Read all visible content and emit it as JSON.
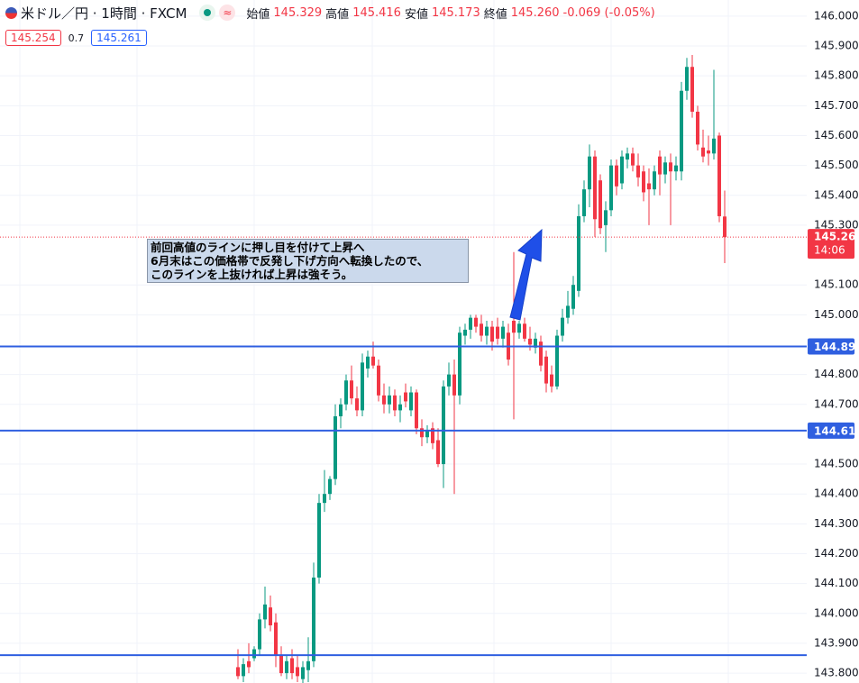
{
  "header": {
    "symbol": "米ドル／円 · 1時間 · FXCM",
    "open_label": "始値",
    "open": "145.329",
    "high_label": "高値",
    "high": "145.416",
    "low_label": "安値",
    "low": "145.173",
    "close_label": "終値",
    "close": "145.260",
    "change": "-0.069 (-0.05%)",
    "sell": "145.254",
    "spread": "0.7",
    "buy": "145.261"
  },
  "chart_data": {
    "type": "candlestick",
    "open": [
      143.82,
      143.79,
      143.84,
      143.85,
      143.88,
      143.98,
      144.02,
      143.97,
      143.86,
      143.8,
      143.85,
      143.82,
      143.78,
      143.81,
      143.84,
      144.12,
      144.37,
      144.4,
      144.45,
      144.66,
      144.7,
      144.78,
      144.72,
      144.68,
      144.82,
      144.86,
      144.83,
      144.73,
      144.7,
      144.73,
      144.68,
      144.74,
      144.68,
      144.74,
      144.62,
      144.59,
      144.62,
      144.58,
      144.5,
      144.76,
      144.8,
      144.73,
      144.93,
      144.95,
      144.99,
      144.97,
      144.93,
      144.96,
      144.96,
      144.92,
      144.94,
      144.98,
      144.94,
      144.97,
      144.92,
      144.89,
      144.91,
      144.86,
      144.8,
      144.76,
      144.93,
      144.99,
      145.02,
      145.08,
      145.33,
      145.42,
      145.53,
      145.45,
      145.3,
      145.35,
      145.5,
      145.44,
      145.52,
      145.54,
      145.5,
      145.48,
      145.44,
      145.42,
      145.53,
      145.47,
      145.51,
      145.48,
      145.48,
      145.75,
      145.83,
      145.68,
      145.56,
      145.55,
      145.54,
      145.6,
      145.329
    ],
    "high": [
      143.88,
      143.85,
      143.9,
      143.89,
      144.0,
      144.09,
      144.06,
      144.0,
      143.89,
      143.86,
      143.88,
      143.86,
      143.84,
      143.92,
      144.17,
      144.4,
      144.48,
      144.46,
      144.7,
      144.72,
      144.8,
      144.83,
      144.76,
      144.87,
      144.88,
      144.91,
      144.85,
      144.77,
      144.76,
      144.75,
      144.73,
      144.77,
      144.76,
      144.75,
      144.65,
      144.63,
      144.64,
      144.62,
      144.78,
      144.84,
      144.85,
      144.96,
      144.97,
      145.0,
      145.0,
      145.0,
      144.98,
      144.98,
      144.99,
      144.98,
      144.97,
      145.21,
      144.98,
      144.99,
      144.96,
      144.94,
      144.93,
      144.88,
      144.83,
      144.95,
      145.02,
      145.08,
      145.13,
      145.37,
      145.45,
      145.57,
      145.55,
      145.47,
      145.38,
      145.52,
      145.52,
      145.55,
      145.56,
      145.56,
      145.54,
      145.5,
      145.49,
      145.5,
      145.55,
      145.53,
      145.54,
      145.53,
      145.78,
      145.86,
      145.87,
      145.7,
      145.62,
      145.6,
      145.82,
      145.61,
      145.416
    ],
    "low": [
      143.78,
      143.77,
      143.8,
      143.84,
      143.86,
      143.95,
      143.94,
      143.82,
      143.79,
      143.78,
      143.78,
      143.77,
      143.76,
      143.77,
      143.82,
      144.1,
      144.34,
      144.38,
      144.43,
      144.62,
      144.68,
      144.7,
      144.66,
      144.66,
      144.79,
      144.82,
      144.71,
      144.67,
      144.67,
      144.66,
      144.64,
      144.69,
      144.66,
      144.6,
      144.56,
      144.57,
      144.55,
      144.49,
      144.42,
      144.73,
      144.4,
      144.7,
      144.9,
      144.92,
      144.94,
      144.91,
      144.9,
      144.88,
      144.9,
      144.89,
      144.83,
      144.65,
      144.92,
      144.91,
      144.88,
      144.87,
      144.81,
      144.74,
      144.74,
      144.75,
      144.91,
      144.97,
      145.0,
      145.06,
      145.31,
      145.36,
      145.26,
      145.27,
      145.21,
      145.33,
      145.4,
      145.42,
      145.49,
      145.48,
      145.43,
      145.38,
      145.3,
      145.4,
      145.4,
      145.44,
      145.3,
      145.45,
      145.45,
      145.72,
      145.66,
      145.55,
      145.51,
      145.5,
      145.52,
      145.31,
      145.173
    ],
    "close": [
      143.79,
      143.83,
      143.82,
      143.88,
      143.98,
      144.03,
      143.96,
      143.86,
      143.8,
      143.84,
      143.8,
      143.79,
      143.82,
      143.84,
      144.12,
      144.37,
      144.4,
      144.45,
      144.66,
      144.7,
      144.78,
      144.72,
      144.68,
      144.84,
      144.86,
      144.83,
      144.73,
      144.7,
      144.73,
      144.68,
      144.7,
      144.71,
      144.74,
      144.62,
      144.59,
      144.61,
      144.57,
      144.5,
      144.76,
      144.8,
      144.73,
      144.94,
      144.95,
      144.99,
      144.96,
      144.93,
      144.96,
      144.91,
      144.92,
      144.96,
      144.85,
      144.94,
      144.97,
      144.92,
      144.9,
      144.92,
      144.83,
      144.77,
      144.76,
      144.93,
      144.99,
      145.03,
      145.1,
      145.33,
      145.42,
      145.53,
      145.32,
      145.29,
      145.35,
      145.5,
      145.43,
      145.53,
      145.54,
      145.5,
      145.46,
      145.41,
      145.42,
      145.48,
      145.47,
      145.51,
      145.48,
      145.5,
      145.75,
      145.83,
      145.68,
      145.57,
      145.53,
      145.54,
      145.59,
      145.33,
      145.26
    ],
    "up_color": "#089981",
    "down_color": "#f23645",
    "ylim": [
      143.767,
      146.054
    ],
    "yticks": [
      {
        "value": 146,
        "label": "146.000"
      },
      {
        "value": 145.9,
        "label": "145.900"
      },
      {
        "value": 145.8,
        "label": "145.800"
      },
      {
        "value": 145.7,
        "label": "145.700"
      },
      {
        "value": 145.6,
        "label": "145.600"
      },
      {
        "value": 145.5,
        "label": "145.500"
      },
      {
        "value": 145.4,
        "label": "145.400"
      },
      {
        "value": 145.3,
        "label": "145.300"
      },
      {
        "value": 145.1,
        "label": "145.100"
      },
      {
        "value": 145,
        "label": "145.000"
      },
      {
        "value": 144.8,
        "label": "144.800"
      },
      {
        "value": 144.7,
        "label": "144.700"
      },
      {
        "value": 144.5,
        "label": "144.500"
      },
      {
        "value": 144.4,
        "label": "144.400"
      },
      {
        "value": 144.3,
        "label": "144.300"
      },
      {
        "value": 144.2,
        "label": "144.200"
      },
      {
        "value": 144.1,
        "label": "144.100"
      },
      {
        "value": 144,
        "label": "144.000"
      },
      {
        "value": 143.9,
        "label": "143.900"
      },
      {
        "value": 143.8,
        "label": "143.800"
      }
    ],
    "grid": true,
    "hlines": [
      {
        "value": 144.894,
        "label": "144.894"
      },
      {
        "value": 144.612,
        "label": "144.612"
      },
      {
        "value": 143.86
      }
    ],
    "hline_color": "#2f5fe0",
    "price_line": {
      "value": 145.26,
      "label": "145.260",
      "countdown": "14:06"
    },
    "annotation": [
      "前回高値のラインに押し目を付けて上昇へ",
      "6月末はこの価格帯で反発し下げ方向へ転換したので、",
      "このラインを上抜ければ上昇は強そう。"
    ]
  }
}
